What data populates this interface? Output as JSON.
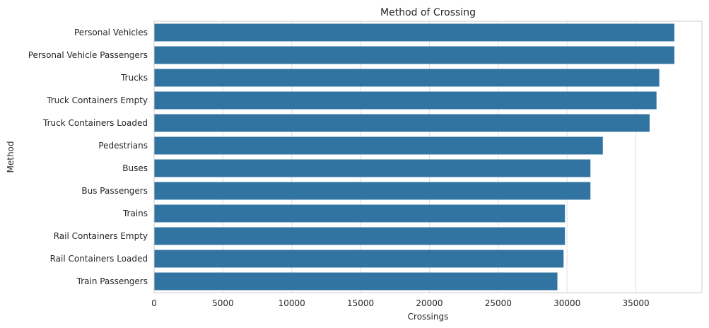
{
  "chart_data": {
    "type": "bar",
    "orientation": "horizontal",
    "title": "Method of Crossing",
    "xlabel": "Crossings",
    "ylabel": "Method",
    "categories": [
      "Personal Vehicles",
      "Personal Vehicle Passengers",
      "Trucks",
      "Truck Containers Empty",
      "Truck Containers Loaded",
      "Pedestrians",
      "Buses",
      "Bus Passengers",
      "Trains",
      "Rail Containers Empty",
      "Rail Containers Loaded",
      "Train Passengers"
    ],
    "values": [
      37800,
      37800,
      36700,
      36500,
      36000,
      32600,
      31700,
      31700,
      29850,
      29850,
      29750,
      29300
    ],
    "xlim": [
      0,
      39800
    ],
    "xticks": [
      0,
      5000,
      10000,
      15000,
      20000,
      25000,
      30000,
      35000
    ],
    "xtick_labels": [
      "0",
      "5000",
      "10000",
      "15000",
      "20000",
      "25000",
      "30000",
      "35000"
    ],
    "grid": true,
    "colors": {
      "bar": "#3274a1",
      "grid": "#e0e0e0",
      "spine": "#cccccc",
      "text": "#262626"
    }
  }
}
